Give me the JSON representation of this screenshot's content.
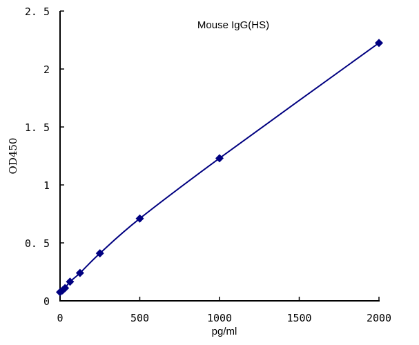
{
  "chart_data": {
    "type": "scatter",
    "title": "Mouse   IgG(HS)",
    "xlabel": "pg/ml",
    "ylabel": "OD450",
    "xlim": [
      0,
      2000
    ],
    "ylim": [
      0,
      2.5
    ],
    "xticks": [
      "0",
      "500",
      "1000",
      "1500",
      "2000"
    ],
    "yticks": [
      "0",
      "0. 5",
      "1",
      "1. 5",
      "2",
      "2. 5"
    ],
    "grid": false,
    "series": [
      {
        "x": [
          0,
          15.6,
          31.25,
          62.5,
          125,
          250,
          500,
          1000,
          2000
        ],
        "y": [
          0.075,
          0.09,
          0.11,
          0.165,
          0.24,
          0.41,
          0.71,
          1.23,
          2.225
        ],
        "color": "#000080",
        "marker": "diamond",
        "line": "smooth"
      }
    ]
  }
}
